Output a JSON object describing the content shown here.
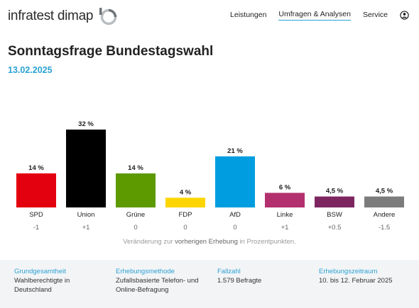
{
  "header": {
    "logo_text": "infratest dimap",
    "nav": [
      "Leistungen",
      "Umfragen & Analysen",
      "Service"
    ],
    "active_nav_index": 1
  },
  "page": {
    "title": "Sonntagsfrage Bundestagswahl",
    "date": "13.02.2025"
  },
  "chart_data": {
    "type": "bar",
    "categories": [
      "SPD",
      "Union",
      "Grüne",
      "FDP",
      "AfD",
      "Linke",
      "BSW",
      "Andere"
    ],
    "values": [
      14,
      32,
      14,
      4,
      21,
      6,
      4.5,
      4.5
    ],
    "value_labels": [
      "14 %",
      "32 %",
      "14 %",
      "4 %",
      "21 %",
      "6 %",
      "4,5 %",
      "4,5 %"
    ],
    "changes": [
      "-1",
      "+1",
      "0",
      "0",
      "0",
      "+1",
      "+0.5",
      "-1.5"
    ],
    "colors": [
      "#e3000f",
      "#000000",
      "#5d9a00",
      "#ffd500",
      "#009ee0",
      "#b3306e",
      "#7d2561",
      "#7c7c7c"
    ],
    "ylim": [
      0,
      32
    ]
  },
  "note": {
    "before": "Veränderung zur ",
    "link": "vorherigen Erhebung",
    "after": " in Prozentpunkten."
  },
  "footer": {
    "items": [
      {
        "label": "Grundgesamtheit",
        "value": "Wahlberechtigte in\nDeutschland"
      },
      {
        "label": "Erhebungsmethode",
        "value": "Zufallsbasierte Telefon- und\nOnline-Befragung"
      },
      {
        "label": "Fallzahl",
        "value": "1.579 Befragte"
      },
      {
        "label": "Erhebungszeitraum",
        "value": "10. bis 12. Februar 2025"
      }
    ]
  },
  "icons": {
    "user": "user-circle-icon",
    "logo": "logo-mark-icon"
  }
}
